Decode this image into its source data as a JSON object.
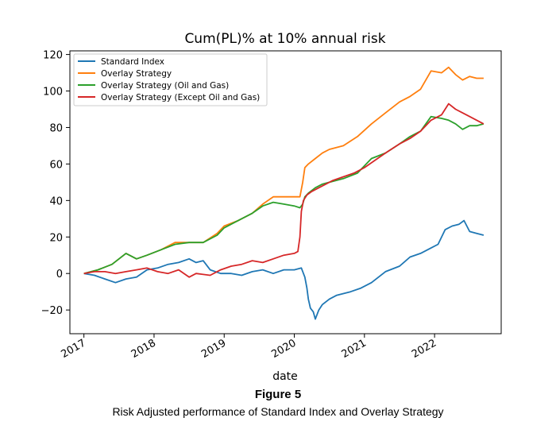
{
  "chart_data": {
    "type": "line",
    "title": "Cum(PL)% at 10% annual risk",
    "xlabel": "date",
    "ylabel": "",
    "xlim": [
      2016.8,
      2022.95
    ],
    "ylim": [
      -33,
      122
    ],
    "x_ticks": [
      2017,
      2018,
      2019,
      2020,
      2021,
      2022
    ],
    "y_ticks": [
      -20,
      0,
      20,
      40,
      60,
      80,
      100,
      120
    ],
    "y_tick_labels": [
      "−20",
      "0",
      "20",
      "40",
      "60",
      "80",
      "100",
      "120"
    ],
    "grid": false,
    "legend": "top-left",
    "series": [
      {
        "name": "Standard Index",
        "color": "#1f77b4",
        "x": [
          2017.0,
          2017.15,
          2017.3,
          2017.45,
          2017.6,
          2017.75,
          2017.9,
          2018.05,
          2018.2,
          2018.35,
          2018.5,
          2018.6,
          2018.7,
          2018.8,
          2018.95,
          2019.1,
          2019.25,
          2019.4,
          2019.55,
          2019.7,
          2019.85,
          2020.0,
          2020.1,
          2020.15,
          2020.18,
          2020.2,
          2020.23,
          2020.27,
          2020.3,
          2020.35,
          2020.4,
          2020.5,
          2020.6,
          2020.7,
          2020.8,
          2020.95,
          2021.1,
          2021.3,
          2021.5,
          2021.65,
          2021.8,
          2021.95,
          2022.05,
          2022.15,
          2022.25,
          2022.35,
          2022.42,
          2022.5,
          2022.6,
          2022.7
        ],
        "y": [
          0,
          -1,
          -3,
          -5,
          -3,
          -2,
          2,
          3,
          5,
          6,
          8,
          6,
          7,
          2,
          0,
          0,
          -1,
          1,
          2,
          0,
          2,
          2,
          3,
          -2,
          -8,
          -14,
          -19,
          -21,
          -25,
          -20,
          -17,
          -14,
          -12,
          -11,
          -10,
          -8,
          -5,
          1,
          4,
          9,
          11,
          14,
          16,
          24,
          26,
          27,
          29,
          23,
          22,
          21
        ]
      },
      {
        "name": "Overlay Strategy",
        "color": "#ff7f0e",
        "x": [
          2017.0,
          2017.2,
          2017.4,
          2017.6,
          2017.75,
          2017.9,
          2018.1,
          2018.3,
          2018.5,
          2018.7,
          2018.9,
          2019.0,
          2019.2,
          2019.4,
          2019.55,
          2019.7,
          2019.85,
          2020.0,
          2020.08,
          2020.12,
          2020.15,
          2020.2,
          2020.3,
          2020.4,
          2020.5,
          2020.7,
          2020.9,
          2021.1,
          2021.3,
          2021.5,
          2021.65,
          2021.8,
          2021.95,
          2022.1,
          2022.2,
          2022.3,
          2022.4,
          2022.5,
          2022.6,
          2022.7
        ],
        "y": [
          0,
          2,
          5,
          11,
          8,
          10,
          13,
          17,
          17,
          17,
          22,
          26,
          29,
          33,
          38,
          42,
          42,
          42,
          42,
          50,
          58,
          60,
          63,
          66,
          68,
          70,
          75,
          82,
          88,
          94,
          97,
          101,
          111,
          110,
          113,
          109,
          106,
          108,
          107,
          107
        ]
      },
      {
        "name": "Overlay Strategy (Oil and Gas)",
        "color": "#2ca02c",
        "x": [
          2017.0,
          2017.2,
          2017.4,
          2017.6,
          2017.75,
          2017.9,
          2018.1,
          2018.3,
          2018.5,
          2018.7,
          2018.9,
          2019.0,
          2019.2,
          2019.4,
          2019.55,
          2019.7,
          2019.85,
          2020.0,
          2020.08,
          2020.12,
          2020.15,
          2020.2,
          2020.3,
          2020.4,
          2020.5,
          2020.7,
          2020.9,
          2021.1,
          2021.3,
          2021.5,
          2021.65,
          2021.8,
          2021.95,
          2022.1,
          2022.2,
          2022.3,
          2022.4,
          2022.5,
          2022.6,
          2022.7
        ],
        "y": [
          0,
          2,
          5,
          11,
          8,
          10,
          13,
          16,
          17,
          17,
          21,
          25,
          29,
          33,
          37,
          39,
          38,
          37,
          36,
          38,
          42,
          44,
          47,
          49,
          50,
          52,
          55,
          63,
          66,
          71,
          75,
          78,
          86,
          85,
          84,
          82,
          79,
          81,
          81,
          82
        ]
      },
      {
        "name": "Overlay Strategy (Except Oil and Gas)",
        "color": "#d62728",
        "x": [
          2017.0,
          2017.15,
          2017.3,
          2017.45,
          2017.6,
          2017.75,
          2017.9,
          2018.05,
          2018.2,
          2018.35,
          2018.5,
          2018.6,
          2018.8,
          2018.95,
          2019.1,
          2019.25,
          2019.4,
          2019.55,
          2019.7,
          2019.85,
          2020.0,
          2020.05,
          2020.08,
          2020.1,
          2020.13,
          2020.18,
          2020.25,
          2020.35,
          2020.45,
          2020.55,
          2020.7,
          2020.85,
          2021.0,
          2021.15,
          2021.3,
          2021.5,
          2021.65,
          2021.8,
          2021.95,
          2022.1,
          2022.2,
          2022.3,
          2022.4,
          2022.5,
          2022.6,
          2022.7
        ],
        "y": [
          0,
          1,
          1,
          0,
          1,
          2,
          3,
          1,
          0,
          2,
          -2,
          0,
          -1,
          2,
          4,
          5,
          7,
          6,
          8,
          10,
          11,
          12,
          20,
          34,
          40,
          43,
          45,
          47,
          49,
          51,
          53,
          55,
          58,
          62,
          66,
          71,
          74,
          78,
          84,
          87,
          93,
          90,
          88,
          86,
          84,
          82
        ]
      }
    ]
  },
  "caption": {
    "figure_label": "Figure 5",
    "text": "Risk Adjusted performance of Standard Index and Overlay Strategy"
  }
}
